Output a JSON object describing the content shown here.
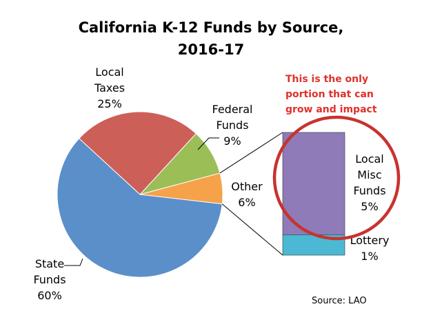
{
  "chart_data": {
    "type": "pie",
    "title_line1": "California K-12 Funds by Source,",
    "title_line2": "2016-17",
    "slices": [
      {
        "name_lines": [
          "State",
          "Funds"
        ],
        "value": 60,
        "pct": "60%",
        "color": "#5b8fc9"
      },
      {
        "name_lines": [
          "Local",
          "Taxes"
        ],
        "value": 25,
        "pct": "25%",
        "color": "#cd5f59"
      },
      {
        "name_lines": [
          "Federal",
          "Funds"
        ],
        "value": 9,
        "pct": "9%",
        "color": "#9bbe57"
      },
      {
        "name_lines": [
          "Other"
        ],
        "value": 6,
        "pct": "6%",
        "color": "#f5a24b"
      }
    ],
    "breakdown_of": "Other",
    "breakdown": [
      {
        "name_lines": [
          "Local",
          "Misc",
          "Funds"
        ],
        "value": 5,
        "pct": "5%",
        "color": "#8e7bb7"
      },
      {
        "name_lines": [
          "Lottery"
        ],
        "value": 1,
        "pct": "1%",
        "color": "#4bb9d3"
      }
    ],
    "annotation_lines": [
      "This is the only",
      "portion that can",
      "grow and impact"
    ],
    "annotation_color": "#e0302a",
    "source": "Source: LAO"
  }
}
